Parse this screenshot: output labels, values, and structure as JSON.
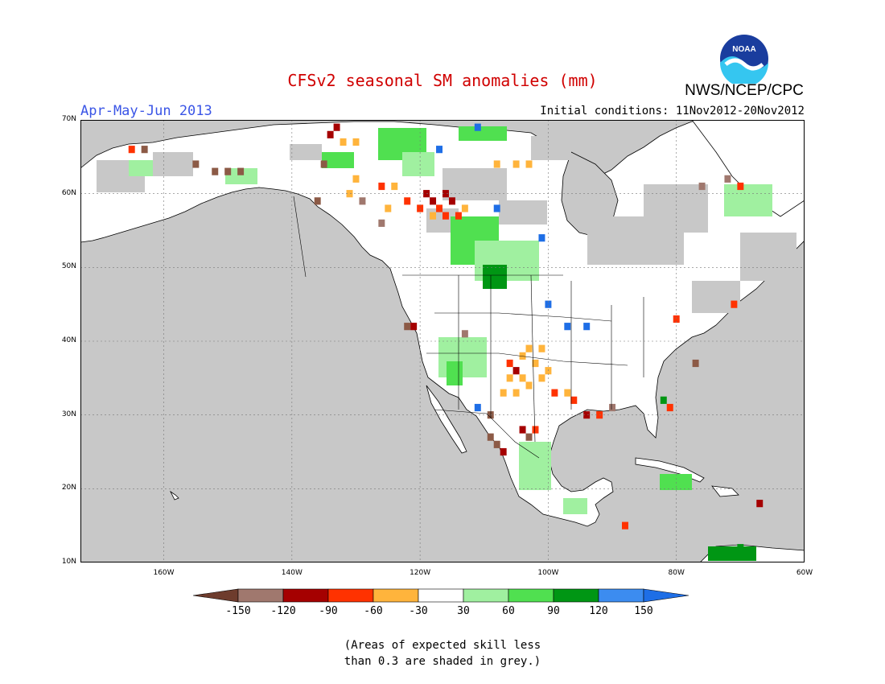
{
  "header": {
    "title": "CFSv2 seasonal SM anomalies (mm)",
    "season": "Apr-May-Jun 2013",
    "initial_conditions": "Initial conditions: 11Nov2012-20Nov2012",
    "agency": "NWS/NCEP/CPC",
    "logo_text": "NOAA"
  },
  "map": {
    "lon_range": [
      -173,
      -60
    ],
    "lat_range": [
      10,
      70
    ],
    "lat_ticks": [
      {
        "value": 70,
        "label": "70N"
      },
      {
        "value": 60,
        "label": "60N"
      },
      {
        "value": 50,
        "label": "50N"
      },
      {
        "value": 40,
        "label": "40N"
      },
      {
        "value": 30,
        "label": "30N"
      },
      {
        "value": 20,
        "label": "20N"
      },
      {
        "value": 10,
        "label": "10N"
      }
    ],
    "lon_ticks": [
      {
        "value": -160,
        "label": "160W"
      },
      {
        "value": -140,
        "label": "140W"
      },
      {
        "value": -120,
        "label": "120W"
      },
      {
        "value": -100,
        "label": "100W"
      },
      {
        "value": -80,
        "label": "80W"
      },
      {
        "value": -60,
        "label": "60W"
      }
    ],
    "ocean_color": "#c8c8c8",
    "land_color": "#ffffff",
    "low_skill_color": "#c8c8c8",
    "anomaly_cells": [
      {
        "lon": -116,
        "lat": 60,
        "color": "#a50000"
      },
      {
        "lon": -118,
        "lat": 59,
        "color": "#a50000"
      },
      {
        "lon": -115,
        "lat": 59,
        "color": "#a50000"
      },
      {
        "lon": -119,
        "lat": 60,
        "color": "#a50000"
      },
      {
        "lon": -117,
        "lat": 58,
        "color": "#ff3200"
      },
      {
        "lon": -114,
        "lat": 57,
        "color": "#ff3200"
      },
      {
        "lon": -116,
        "lat": 57,
        "color": "#ff3200"
      },
      {
        "lon": -120,
        "lat": 58,
        "color": "#ff3200"
      },
      {
        "lon": -118,
        "lat": 57,
        "color": "#ffb43c"
      },
      {
        "lon": -113,
        "lat": 58,
        "color": "#ffb43c"
      },
      {
        "lon": -125,
        "lat": 58,
        "color": "#ffb43c"
      },
      {
        "lon": -124,
        "lat": 61,
        "color": "#ffb43c"
      },
      {
        "lon": -122,
        "lat": 59,
        "color": "#ff3200"
      },
      {
        "lon": -126,
        "lat": 61,
        "color": "#ff3200"
      },
      {
        "lon": -131,
        "lat": 60,
        "color": "#ffb43c"
      },
      {
        "lon": -130,
        "lat": 62,
        "color": "#ffb43c"
      },
      {
        "lon": -103,
        "lat": 64,
        "color": "#ffb43c"
      },
      {
        "lon": -105,
        "lat": 64,
        "color": "#ffb43c"
      },
      {
        "lon": -108,
        "lat": 64,
        "color": "#ffb43c"
      },
      {
        "lon": -134,
        "lat": 68,
        "color": "#a50000"
      },
      {
        "lon": -133,
        "lat": 69,
        "color": "#a50000"
      },
      {
        "lon": -132,
        "lat": 67,
        "color": "#ffb43c"
      },
      {
        "lon": -130,
        "lat": 67,
        "color": "#ffb43c"
      },
      {
        "lon": -117,
        "lat": 66,
        "color": "#1e6ee6"
      },
      {
        "lon": -111,
        "lat": 69,
        "color": "#1e6ee6"
      },
      {
        "lon": -111,
        "lat": 31,
        "color": "#1e6ee6"
      },
      {
        "lon": -97,
        "lat": 42,
        "color": "#1e6ee6"
      },
      {
        "lon": -101,
        "lat": 54,
        "color": "#1e6ee6"
      },
      {
        "lon": -105,
        "lat": 36,
        "color": "#a50000"
      },
      {
        "lon": -104,
        "lat": 35,
        "color": "#ffb43c"
      },
      {
        "lon": -106,
        "lat": 35,
        "color": "#ffb43c"
      },
      {
        "lon": -103,
        "lat": 34,
        "color": "#ffb43c"
      },
      {
        "lon": -105,
        "lat": 33,
        "color": "#ffb43c"
      },
      {
        "lon": -107,
        "lat": 33,
        "color": "#ffb43c"
      },
      {
        "lon": -101,
        "lat": 35,
        "color": "#ffb43c"
      },
      {
        "lon": -100,
        "lat": 36,
        "color": "#ffb43c"
      },
      {
        "lon": -102,
        "lat": 37,
        "color": "#ffb43c"
      },
      {
        "lon": -104,
        "lat": 38,
        "color": "#ffb43c"
      },
      {
        "lon": -103,
        "lat": 39,
        "color": "#ffb43c"
      },
      {
        "lon": -101,
        "lat": 39,
        "color": "#ffb43c"
      },
      {
        "lon": -106,
        "lat": 37,
        "color": "#ff3200"
      },
      {
        "lon": -99,
        "lat": 33,
        "color": "#ff3200"
      },
      {
        "lon": -97,
        "lat": 33,
        "color": "#ffb43c"
      },
      {
        "lon": -96,
        "lat": 32,
        "color": "#ff3200"
      },
      {
        "lon": -94,
        "lat": 30,
        "color": "#a50000"
      },
      {
        "lon": -92,
        "lat": 30,
        "color": "#ff3200"
      },
      {
        "lon": -109,
        "lat": 30,
        "color": "#8c5a46"
      },
      {
        "lon": -109,
        "lat": 27,
        "color": "#8c5a46"
      },
      {
        "lon": -108,
        "lat": 26,
        "color": "#8c5a46"
      },
      {
        "lon": -107,
        "lat": 25,
        "color": "#a50000"
      },
      {
        "lon": -103,
        "lat": 27,
        "color": "#8c5a46"
      },
      {
        "lon": -104,
        "lat": 28,
        "color": "#a50000"
      },
      {
        "lon": -102,
        "lat": 28,
        "color": "#ff3200"
      },
      {
        "lon": -122,
        "lat": 42,
        "color": "#8c5a46"
      },
      {
        "lon": -121,
        "lat": 42,
        "color": "#a50000"
      },
      {
        "lon": -77,
        "lat": 37,
        "color": "#8c5a46"
      },
      {
        "lon": -71,
        "lat": 45,
        "color": "#ff3200"
      },
      {
        "lon": -80,
        "lat": 43,
        "color": "#ff3200"
      },
      {
        "lon": -82,
        "lat": 32,
        "color": "#009614"
      },
      {
        "lon": -81,
        "lat": 31,
        "color": "#ff3200"
      },
      {
        "lon": -88,
        "lat": 15,
        "color": "#ff3200"
      },
      {
        "lon": -70,
        "lat": 12,
        "color": "#009614"
      },
      {
        "lon": -67,
        "lat": 18,
        "color": "#a50000"
      },
      {
        "lon": -70,
        "lat": 61,
        "color": "#ff3200"
      },
      {
        "lon": -72,
        "lat": 62,
        "color": "#a0786e"
      },
      {
        "lon": -76,
        "lat": 61,
        "color": "#a0786e"
      },
      {
        "lon": -152,
        "lat": 63,
        "color": "#8c5a46"
      },
      {
        "lon": -150,
        "lat": 63,
        "color": "#8c5a46"
      },
      {
        "lon": -148,
        "lat": 63,
        "color": "#8c5a46"
      },
      {
        "lon": -155,
        "lat": 64,
        "color": "#8c5a46"
      },
      {
        "lon": -163,
        "lat": 66,
        "color": "#8c5a46"
      },
      {
        "lon": -165,
        "lat": 66,
        "color": "#ff3200"
      },
      {
        "lon": -135,
        "lat": 64,
        "color": "#8c5a46"
      },
      {
        "lon": -136,
        "lat": 59,
        "color": "#8c5a46"
      },
      {
        "lon": -129,
        "lat": 59,
        "color": "#a0786e"
      },
      {
        "lon": -126,
        "lat": 56,
        "color": "#a0786e"
      },
      {
        "lon": -113,
        "lat": 41,
        "color": "#a0786e"
      },
      {
        "lon": -90,
        "lat": 31,
        "color": "#a0786e"
      },
      {
        "lon": -108,
        "lat": 58,
        "color": "#1e6ee6"
      },
      {
        "lon": -100,
        "lat": 45,
        "color": "#1e6ee6"
      },
      {
        "lon": -94,
        "lat": 42,
        "color": "#1e6ee6"
      }
    ],
    "green_cells_light": "#a0f0a0",
    "green_cells_mid": "#50e050",
    "green_cells_dark": "#009614"
  },
  "colorbar": {
    "colors": [
      "#6e3c2d",
      "#a0786e",
      "#a50000",
      "#ff3200",
      "#ffb43c",
      "#ffffff",
      "#a0f0a0",
      "#50e050",
      "#009614",
      "#3c8cf0",
      "#1e6ee6"
    ],
    "labels": [
      "-150",
      "-120",
      "-90",
      "-60",
      "-30",
      "30",
      "60",
      "90",
      "120",
      "150"
    ]
  },
  "note": {
    "line1": "(Areas of expected skill less",
    "line2": "than 0.3 are shaded in grey.)"
  }
}
